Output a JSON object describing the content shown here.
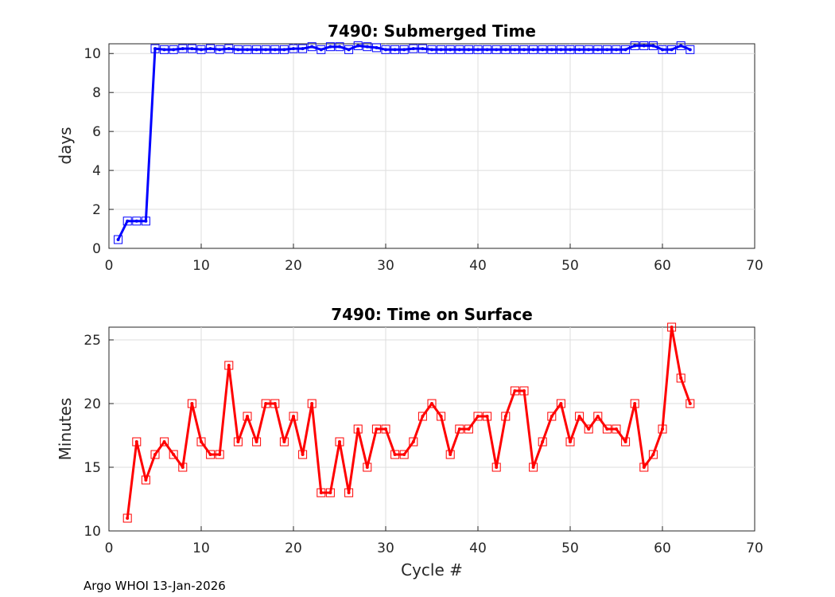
{
  "footer": "Argo WHOI 13-Jan-2026",
  "chart_data": [
    {
      "type": "line",
      "title": "7490: Submerged Time",
      "xlabel": "",
      "ylabel": "days",
      "xlim": [
        0,
        70
      ],
      "ylim": [
        0,
        10.5
      ],
      "xticks": [
        0,
        10,
        20,
        30,
        40,
        50,
        60,
        70
      ],
      "yticks": [
        0,
        2,
        4,
        6,
        8,
        10
      ],
      "grid": true,
      "color": "#0000ff",
      "series": [
        {
          "name": "Submerged Time",
          "x": [
            1,
            2,
            3,
            4,
            5,
            6,
            7,
            8,
            9,
            10,
            11,
            12,
            13,
            14,
            15,
            16,
            17,
            18,
            19,
            20,
            21,
            22,
            23,
            24,
            25,
            26,
            27,
            28,
            29,
            30,
            31,
            32,
            33,
            34,
            35,
            36,
            37,
            38,
            39,
            40,
            41,
            42,
            43,
            44,
            45,
            46,
            47,
            48,
            49,
            50,
            51,
            52,
            53,
            54,
            55,
            56,
            57,
            58,
            59,
            60,
            61,
            62,
            63
          ],
          "values": [
            0.45,
            1.4,
            1.4,
            1.4,
            10.25,
            10.2,
            10.2,
            10.25,
            10.25,
            10.2,
            10.25,
            10.2,
            10.25,
            10.2,
            10.2,
            10.2,
            10.2,
            10.2,
            10.2,
            10.25,
            10.25,
            10.35,
            10.2,
            10.35,
            10.35,
            10.2,
            10.4,
            10.35,
            10.3,
            10.2,
            10.2,
            10.2,
            10.25,
            10.25,
            10.2,
            10.2,
            10.2,
            10.2,
            10.2,
            10.2,
            10.2,
            10.2,
            10.2,
            10.2,
            10.2,
            10.2,
            10.2,
            10.2,
            10.2,
            10.2,
            10.2,
            10.2,
            10.2,
            10.2,
            10.2,
            10.2,
            10.4,
            10.4,
            10.4,
            10.2,
            10.2,
            10.4,
            10.2
          ]
        }
      ]
    },
    {
      "type": "line",
      "title": "7490: Time on Surface",
      "xlabel": "Cycle #",
      "ylabel": "Minutes",
      "xlim": [
        0,
        70
      ],
      "ylim": [
        10,
        26
      ],
      "xticks": [
        0,
        10,
        20,
        30,
        40,
        50,
        60,
        70
      ],
      "yticks": [
        10,
        15,
        20,
        25
      ],
      "grid": true,
      "color": "#ff0000",
      "series": [
        {
          "name": "Time on Surface",
          "x": [
            2,
            3,
            4,
            5,
            6,
            7,
            8,
            9,
            10,
            11,
            12,
            13,
            14,
            15,
            16,
            17,
            18,
            19,
            20,
            21,
            22,
            23,
            24,
            25,
            26,
            27,
            28,
            29,
            30,
            31,
            32,
            33,
            34,
            35,
            36,
            37,
            38,
            39,
            40,
            41,
            42,
            43,
            44,
            45,
            46,
            47,
            48,
            49,
            50,
            51,
            52,
            53,
            54,
            55,
            56,
            57,
            58,
            59,
            60,
            61,
            62,
            63
          ],
          "values": [
            11,
            17,
            14,
            16,
            17,
            16,
            15,
            20,
            17,
            16,
            16,
            23,
            17,
            19,
            17,
            20,
            20,
            17,
            19,
            16,
            20,
            13,
            13,
            17,
            13,
            18,
            15,
            18,
            18,
            16,
            16,
            17,
            19,
            20,
            19,
            16,
            18,
            18,
            19,
            19,
            15,
            19,
            21,
            21,
            15,
            17,
            19,
            20,
            17,
            19,
            18,
            19,
            18,
            18,
            17,
            20,
            15,
            16,
            18,
            26,
            22,
            20
          ]
        }
      ]
    }
  ]
}
